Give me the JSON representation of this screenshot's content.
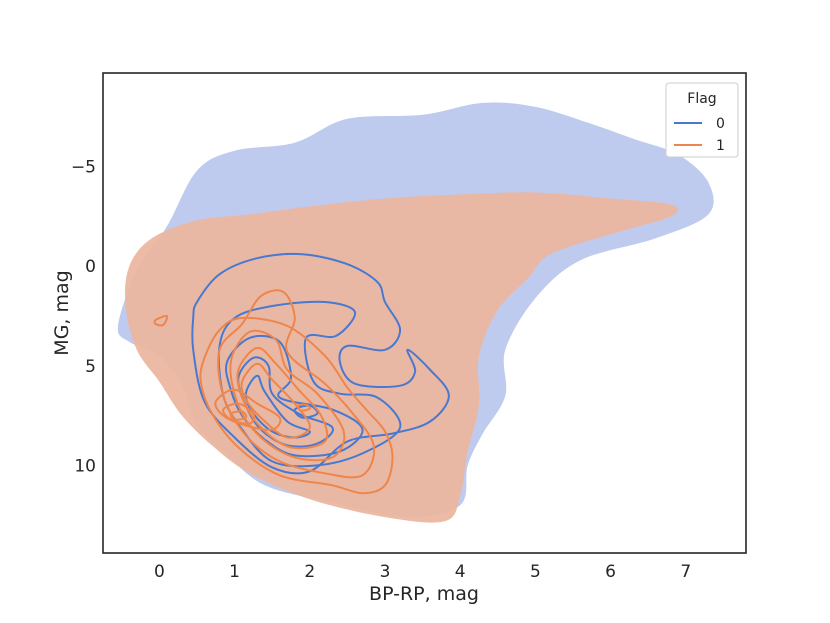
{
  "chart_data": {
    "type": "heatmap",
    "title": "",
    "xlabel": "BP-RP, mag",
    "ylabel": "MG, mag",
    "xlim": [
      -0.75,
      7.8
    ],
    "ylim": [
      14.4,
      -9.7
    ],
    "y_inverted": true,
    "xticks": [
      0,
      1,
      2,
      3,
      4,
      5,
      6,
      7
    ],
    "yticks": [
      -5,
      0,
      5,
      10
    ],
    "xtick_labels": [
      "0",
      "1",
      "2",
      "3",
      "4",
      "5",
      "6",
      "7"
    ],
    "ytick_labels": [
      "−5",
      "0",
      "5",
      "10"
    ],
    "grid": false,
    "legend": {
      "title": "Flag",
      "placement": "top-right",
      "entries": [
        {
          "label": "0",
          "color": "#4878d0"
        },
        {
          "label": "1",
          "color": "#ee854a"
        }
      ]
    },
    "series": [
      {
        "name": "0",
        "color": "#4878d0",
        "hist_color": "#b7c5ec",
        "hist_outline": [
          [
            -0.55,
            3.0
          ],
          [
            -0.3,
            0.2
          ],
          [
            0.1,
            -2.0
          ],
          [
            0.5,
            -4.8
          ],
          [
            1.0,
            -5.8
          ],
          [
            1.8,
            -6.2
          ],
          [
            2.5,
            -7.4
          ],
          [
            3.5,
            -7.6
          ],
          [
            4.3,
            -8.2
          ],
          [
            5.0,
            -8.0
          ],
          [
            5.7,
            -7.2
          ],
          [
            6.3,
            -6.4
          ],
          [
            6.9,
            -5.6
          ],
          [
            7.3,
            -4.2
          ],
          [
            7.3,
            -2.6
          ],
          [
            6.6,
            -1.4
          ],
          [
            5.6,
            -0.3
          ],
          [
            5.0,
            1.6
          ],
          [
            4.6,
            4.2
          ],
          [
            4.6,
            6.5
          ],
          [
            4.3,
            8.4
          ],
          [
            4.1,
            10.0
          ],
          [
            4.0,
            12.0
          ],
          [
            3.3,
            12.6
          ],
          [
            2.2,
            11.8
          ],
          [
            1.4,
            11.0
          ],
          [
            0.9,
            9.5
          ],
          [
            0.5,
            8.0
          ],
          [
            0.3,
            6.0
          ],
          [
            0.0,
            4.5
          ],
          [
            -0.4,
            3.8
          ]
        ],
        "kde_levels": [
          {
            "level": 1,
            "points": [
              [
                0.5,
                1.8
              ],
              [
                0.8,
                0.4
              ],
              [
                1.3,
                -0.4
              ],
              [
                1.9,
                -0.6
              ],
              [
                2.5,
                -0.1
              ],
              [
                2.9,
                0.8
              ],
              [
                3.0,
                1.8
              ],
              [
                3.2,
                3.2
              ],
              [
                3.0,
                4.2
              ],
              [
                2.5,
                4.0
              ],
              [
                2.4,
                4.8
              ],
              [
                2.6,
                5.9
              ],
              [
                3.2,
                6.0
              ],
              [
                3.4,
                5.3
              ],
              [
                3.3,
                4.2
              ],
              [
                3.6,
                5.2
              ],
              [
                3.85,
                6.5
              ],
              [
                3.6,
                7.8
              ],
              [
                3.1,
                8.4
              ],
              [
                2.5,
                8.8
              ],
              [
                2.0,
                10.3
              ],
              [
                1.5,
                10.1
              ],
              [
                1.0,
                8.6
              ],
              [
                0.6,
                6.8
              ],
              [
                0.45,
                4.2
              ],
              [
                0.45,
                2.6
              ]
            ]
          },
          {
            "level": 2,
            "points": [
              [
                0.8,
                4.0
              ],
              [
                1.0,
                2.6
              ],
              [
                1.5,
                2.0
              ],
              [
                2.2,
                1.8
              ],
              [
                2.6,
                2.3
              ],
              [
                2.35,
                3.5
              ],
              [
                1.95,
                3.6
              ],
              [
                2.05,
                5.8
              ],
              [
                2.4,
                6.4
              ],
              [
                2.9,
                6.6
              ],
              [
                3.2,
                8.1
              ],
              [
                2.7,
                9.4
              ],
              [
                2.1,
                10.0
              ],
              [
                1.5,
                9.8
              ],
              [
                1.1,
                8.2
              ],
              [
                0.85,
                6.5
              ]
            ]
          },
          {
            "level": 3,
            "points": [
              [
                0.9,
                4.8
              ],
              [
                1.2,
                3.6
              ],
              [
                1.6,
                3.8
              ],
              [
                1.75,
                5.6
              ],
              [
                1.6,
                6.6
              ],
              [
                2.3,
                7.2
              ],
              [
                2.7,
                8.2
              ],
              [
                2.4,
                9.3
              ],
              [
                1.8,
                9.5
              ],
              [
                1.4,
                8.7
              ],
              [
                1.1,
                7.5
              ],
              [
                0.95,
                6.2
              ]
            ]
          },
          {
            "level": 4,
            "points": [
              [
                1.05,
                5.6
              ],
              [
                1.25,
                4.6
              ],
              [
                1.45,
                5.0
              ],
              [
                1.5,
                6.4
              ],
              [
                1.85,
                7.4
              ],
              [
                2.3,
                8.1
              ],
              [
                2.1,
                8.9
              ],
              [
                1.7,
                9.0
              ],
              [
                1.35,
                8.2
              ],
              [
                1.15,
                7.0
              ]
            ]
          },
          {
            "level": 5,
            "points": [
              [
                1.15,
                6.4
              ],
              [
                1.3,
                5.5
              ],
              [
                1.4,
                6.3
              ],
              [
                1.7,
                7.8
              ],
              [
                2.0,
                8.3
              ],
              [
                1.8,
                8.6
              ],
              [
                1.5,
                8.3
              ],
              [
                1.25,
                7.4
              ]
            ]
          },
          {
            "level": 6,
            "points": [
              [
                1.8,
                7.2
              ],
              [
                2.0,
                7.0
              ],
              [
                2.1,
                7.4
              ],
              [
                1.9,
                7.6
              ]
            ]
          }
        ]
      },
      {
        "name": "1",
        "color": "#ee854a",
        "hist_color": "#ebb6a0",
        "hist_outline": [
          [
            -0.45,
            2.0
          ],
          [
            -0.4,
            0.0
          ],
          [
            -0.1,
            -1.4
          ],
          [
            0.5,
            -2.3
          ],
          [
            1.2,
            -2.6
          ],
          [
            2.0,
            -3.0
          ],
          [
            3.0,
            -3.4
          ],
          [
            4.0,
            -3.6
          ],
          [
            5.0,
            -3.7
          ],
          [
            6.0,
            -3.4
          ],
          [
            6.8,
            -3.1
          ],
          [
            6.8,
            -2.5
          ],
          [
            6.0,
            -1.6
          ],
          [
            5.2,
            -0.6
          ],
          [
            4.9,
            0.6
          ],
          [
            4.5,
            2.2
          ],
          [
            4.25,
            4.5
          ],
          [
            4.25,
            7.0
          ],
          [
            4.1,
            9.3
          ],
          [
            4.0,
            11.5
          ],
          [
            3.8,
            12.8
          ],
          [
            3.0,
            12.6
          ],
          [
            2.0,
            11.7
          ],
          [
            1.2,
            10.4
          ],
          [
            0.7,
            9.0
          ],
          [
            0.3,
            7.5
          ],
          [
            0.0,
            5.8
          ],
          [
            -0.3,
            4.2
          ]
        ],
        "kde_levels": [
          {
            "level": 1,
            "points": [
              [
                -0.05,
                2.7
              ],
              [
                0.1,
                2.5
              ],
              [
                0.05,
                2.95
              ],
              [
                -0.05,
                2.9
              ]
            ]
          },
          {
            "level": 2,
            "points": [
              [
                0.6,
                4.6
              ],
              [
                0.8,
                3.2
              ],
              [
                1.1,
                2.6
              ],
              [
                1.7,
                3.0
              ],
              [
                2.2,
                4.5
              ],
              [
                2.5,
                6.1
              ],
              [
                2.75,
                7.2
              ],
              [
                3.0,
                8.3
              ],
              [
                3.1,
                9.6
              ],
              [
                3.0,
                11.0
              ],
              [
                2.7,
                11.4
              ],
              [
                2.3,
                11.0
              ],
              [
                1.6,
                10.5
              ],
              [
                1.05,
                9.1
              ],
              [
                0.7,
                7.4
              ],
              [
                0.55,
                5.8
              ]
            ]
          },
          {
            "level": 3,
            "points": [
              [
                0.8,
                4.2
              ],
              [
                1.1,
                2.9
              ],
              [
                1.35,
                1.5
              ],
              [
                1.65,
                1.3
              ],
              [
                1.8,
                2.6
              ],
              [
                1.7,
                4.3
              ],
              [
                2.2,
                5.9
              ],
              [
                2.55,
                7.3
              ],
              [
                2.85,
                9.0
              ],
              [
                2.7,
                10.5
              ],
              [
                2.2,
                10.4
              ],
              [
                1.6,
                9.8
              ],
              [
                1.15,
                8.5
              ],
              [
                0.85,
                6.5
              ]
            ]
          },
          {
            "level": 4,
            "points": [
              [
                0.95,
                4.8
              ],
              [
                1.2,
                3.3
              ],
              [
                1.55,
                3.7
              ],
              [
                1.7,
                5.2
              ],
              [
                2.1,
                6.4
              ],
              [
                2.45,
                8.3
              ],
              [
                2.3,
                9.6
              ],
              [
                1.8,
                9.6
              ],
              [
                1.35,
                8.6
              ],
              [
                1.05,
                7.0
              ]
            ]
          },
          {
            "level": 5,
            "points": [
              [
                1.05,
                5.2
              ],
              [
                1.3,
                4.1
              ],
              [
                1.55,
                4.9
              ],
              [
                1.85,
                6.2
              ],
              [
                2.15,
                7.5
              ],
              [
                2.2,
                8.8
              ],
              [
                1.75,
                9.1
              ],
              [
                1.35,
                8.1
              ],
              [
                1.1,
                6.6
              ]
            ]
          },
          {
            "level": 6,
            "points": [
              [
                1.1,
                5.8
              ],
              [
                1.3,
                4.9
              ],
              [
                1.5,
                5.7
              ],
              [
                1.8,
                6.9
              ],
              [
                2.0,
                8.1
              ],
              [
                1.7,
                8.6
              ],
              [
                1.35,
                7.6
              ],
              [
                1.15,
                6.7
              ]
            ]
          },
          {
            "level": 7,
            "points": [
              [
                0.75,
                6.8
              ],
              [
                1.0,
                6.2
              ],
              [
                1.3,
                6.9
              ],
              [
                1.6,
                7.6
              ],
              [
                1.5,
                8.2
              ],
              [
                1.15,
                8.0
              ],
              [
                0.85,
                7.5
              ]
            ]
          },
          {
            "level": 8,
            "points": [
              [
                0.85,
                7.2
              ],
              [
                1.05,
                6.9
              ],
              [
                1.25,
                7.4
              ],
              [
                1.2,
                7.9
              ],
              [
                0.95,
                7.7
              ]
            ]
          },
          {
            "level": 9,
            "points": [
              [
                0.95,
                7.4
              ],
              [
                1.1,
                7.3
              ],
              [
                1.15,
                7.6
              ],
              [
                1.0,
                7.7
              ]
            ]
          },
          {
            "level": 10,
            "points": [
              [
                1.85,
                7.0
              ],
              [
                1.95,
                6.95
              ],
              [
                2.0,
                7.15
              ],
              [
                1.88,
                7.25
              ]
            ]
          }
        ]
      }
    ]
  }
}
